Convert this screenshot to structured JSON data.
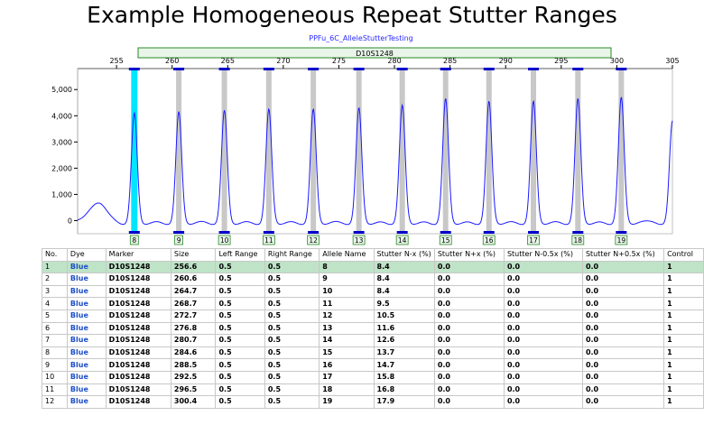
{
  "title": "Example Homogeneous Repeat Stutter Ranges",
  "panel": {
    "sample_name": "PPFu_6C_AlleleStutterTesting",
    "marker_bar_label": "D10S1248"
  },
  "colors": {
    "trace": "#1a1aff",
    "bin": "#c8c8c8",
    "selected_bin": "#00e5ff",
    "marker_bar": "#e8f5e8",
    "selected_row": "#bfe3c7",
    "dye_text": "#1e50c8"
  },
  "chart_data": {
    "type": "line",
    "x_ticks": [
      "255",
      "260",
      "265",
      "270",
      "275",
      "280",
      "285",
      "290",
      "295",
      "300",
      "305"
    ],
    "y_ticks": [
      "0",
      "1,000",
      "2,000",
      "3,000",
      "4,000",
      "5,000"
    ],
    "xlim": [
      251.5,
      305
    ],
    "ylim": [
      -500,
      5800
    ],
    "peaks": [
      {
        "size": 256.6,
        "height": 4150
      },
      {
        "size": 260.6,
        "height": 4200
      },
      {
        "size": 264.7,
        "height": 4250
      },
      {
        "size": 268.7,
        "height": 4300
      },
      {
        "size": 272.7,
        "height": 4300
      },
      {
        "size": 276.8,
        "height": 4350
      },
      {
        "size": 280.7,
        "height": 4450
      },
      {
        "size": 284.6,
        "height": 4700
      },
      {
        "size": 288.5,
        "height": 4600
      },
      {
        "size": 292.5,
        "height": 4600
      },
      {
        "size": 296.5,
        "height": 4700
      },
      {
        "size": 300.4,
        "height": 4750
      },
      {
        "size": 305.0,
        "height": 3850
      }
    ],
    "baseline": 0,
    "bins": [
      {
        "label": "8",
        "size": 256.6,
        "selected": true
      },
      {
        "label": "9",
        "size": 260.6
      },
      {
        "label": "10",
        "size": 264.7
      },
      {
        "label": "11",
        "size": 268.7
      },
      {
        "label": "12",
        "size": 272.7
      },
      {
        "label": "13",
        "size": 276.8
      },
      {
        "label": "14",
        "size": 280.7
      },
      {
        "label": "15",
        "size": 284.6
      },
      {
        "label": "16",
        "size": 288.5
      },
      {
        "label": "17",
        "size": 292.5
      },
      {
        "label": "18",
        "size": 296.5
      },
      {
        "label": "19",
        "size": 300.4
      }
    ]
  },
  "table": {
    "headers": [
      "No.",
      "Dye",
      "Marker",
      "Size",
      "Left Range",
      "Right Range",
      "Allele Name",
      "Stutter N-x (%)",
      "Stutter N+x (%)",
      "Stutter N-0.5x (%)",
      "Stutter N+0.5x (%)",
      "Control"
    ],
    "rows": [
      [
        "1",
        "Blue",
        "D10S1248",
        "256.6",
        "0.5",
        "0.5",
        "8",
        "8.4",
        "0.0",
        "0.0",
        "0.0",
        "1"
      ],
      [
        "2",
        "Blue",
        "D10S1248",
        "260.6",
        "0.5",
        "0.5",
        "9",
        "8.4",
        "0.0",
        "0.0",
        "0.0",
        "1"
      ],
      [
        "3",
        "Blue",
        "D10S1248",
        "264.7",
        "0.5",
        "0.5",
        "10",
        "8.4",
        "0.0",
        "0.0",
        "0.0",
        "1"
      ],
      [
        "4",
        "Blue",
        "D10S1248",
        "268.7",
        "0.5",
        "0.5",
        "11",
        "9.5",
        "0.0",
        "0.0",
        "0.0",
        "1"
      ],
      [
        "5",
        "Blue",
        "D10S1248",
        "272.7",
        "0.5",
        "0.5",
        "12",
        "10.5",
        "0.0",
        "0.0",
        "0.0",
        "1"
      ],
      [
        "6",
        "Blue",
        "D10S1248",
        "276.8",
        "0.5",
        "0.5",
        "13",
        "11.6",
        "0.0",
        "0.0",
        "0.0",
        "1"
      ],
      [
        "7",
        "Blue",
        "D10S1248",
        "280.7",
        "0.5",
        "0.5",
        "14",
        "12.6",
        "0.0",
        "0.0",
        "0.0",
        "1"
      ],
      [
        "8",
        "Blue",
        "D10S1248",
        "284.6",
        "0.5",
        "0.5",
        "15",
        "13.7",
        "0.0",
        "0.0",
        "0.0",
        "1"
      ],
      [
        "9",
        "Blue",
        "D10S1248",
        "288.5",
        "0.5",
        "0.5",
        "16",
        "14.7",
        "0.0",
        "0.0",
        "0.0",
        "1"
      ],
      [
        "10",
        "Blue",
        "D10S1248",
        "292.5",
        "0.5",
        "0.5",
        "17",
        "15.8",
        "0.0",
        "0.0",
        "0.0",
        "1"
      ],
      [
        "11",
        "Blue",
        "D10S1248",
        "296.5",
        "0.5",
        "0.5",
        "18",
        "16.8",
        "0.0",
        "0.0",
        "0.0",
        "1"
      ],
      [
        "12",
        "Blue",
        "D10S1248",
        "300.4",
        "0.5",
        "0.5",
        "19",
        "17.9",
        "0.0",
        "0.0",
        "0.0",
        "1"
      ]
    ],
    "selected_row": 0
  }
}
